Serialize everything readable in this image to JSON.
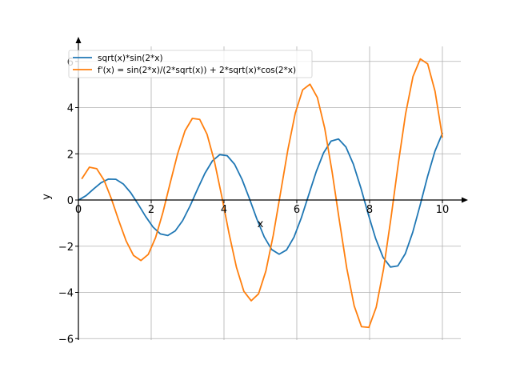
{
  "chart_data": {
    "type": "line",
    "title": "",
    "xlabel": "x",
    "ylabel": "y",
    "xlim": [
      0,
      10.5
    ],
    "ylim": [
      -6,
      6.5
    ],
    "grid": true,
    "legend_position": "top-left",
    "x_ticks": [
      0,
      2,
      4,
      6,
      8,
      10
    ],
    "x_tick_labels": [
      "0",
      "2",
      "4",
      "6",
      "8",
      "10"
    ],
    "y_ticks": [
      -6,
      -4,
      -2,
      0,
      2,
      4,
      6
    ],
    "y_tick_labels": [
      "−6",
      "−4",
      "−2",
      "0",
      "2",
      "4",
      "6"
    ],
    "series": [
      {
        "name": "sqrt(x)*sin(2*x)",
        "color": "#1f77b4",
        "formula": "sqrt(x)*sin(2*x)",
        "x_range": [
          0.01,
          10
        ],
        "points": 50
      },
      {
        "name": "f'(x) = sin(2*x)/(2*sqrt(x)) + 2*sqrt(x)*cos(2*x)",
        "color": "#ff7f0e",
        "formula": "sin(2*x)/(2*sqrt(x)) + 2*sqrt(x)*cos(2*x)",
        "x_range": [
          0.1,
          10
        ],
        "points": 50
      }
    ]
  }
}
